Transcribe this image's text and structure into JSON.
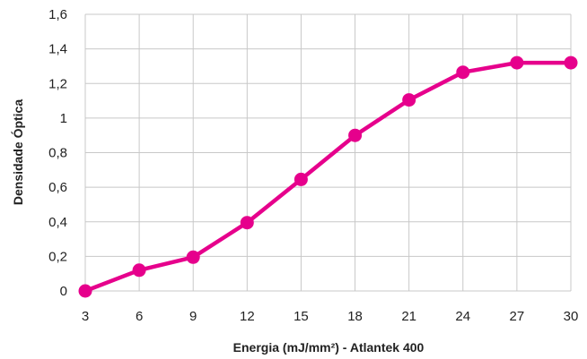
{
  "chart_data": {
    "type": "line",
    "title": "",
    "xlabel": "Energia (mJ/mm²) - Atlantek 400",
    "ylabel": "Densidade Óptica",
    "x_ticks": [
      "3",
      "6",
      "9",
      "12",
      "15",
      "18",
      "21",
      "24",
      "27",
      "30"
    ],
    "y_ticks": [
      "0",
      "0,2",
      "0,4",
      "0,6",
      "0,8",
      "1",
      "1,2",
      "1,4",
      "1,6"
    ],
    "xlim": [
      3,
      30
    ],
    "ylim": [
      0,
      1.6
    ],
    "grid": true,
    "legend": "none",
    "series": [
      {
        "color": "#e6008c",
        "x": [
          3,
          6,
          9,
          12,
          15,
          18,
          21,
          24,
          27,
          30
        ],
        "y": [
          0.0,
          0.12,
          0.195,
          0.395,
          0.645,
          0.9,
          1.105,
          1.265,
          1.32,
          1.32
        ]
      }
    ]
  }
}
